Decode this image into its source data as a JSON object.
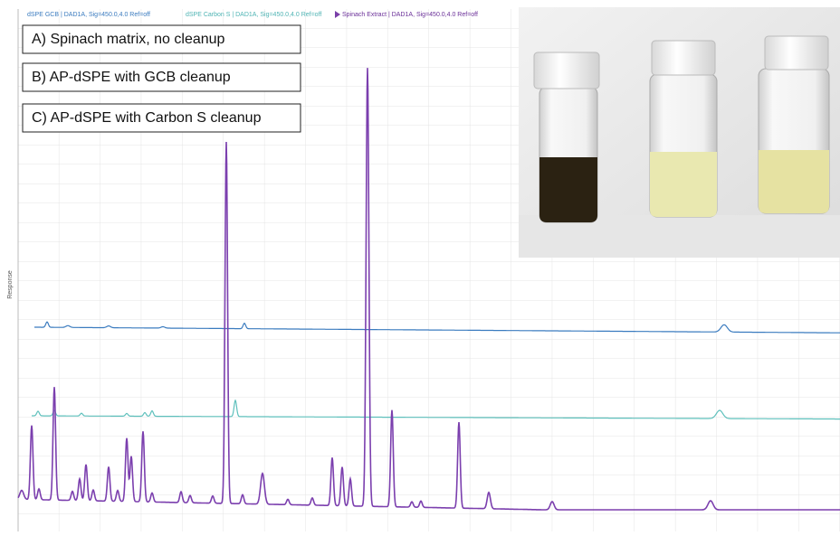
{
  "header_legend": [
    "dSPE GCB | DAD1A, Sig=450.0,4.0 Ref=off",
    "dSPE Carbon S | DAD1A, Sig=450.0,4.0 Ref=off",
    "Spinach Extract | DAD1A, Sig=450.0,4.0 Ref=off"
  ],
  "labels": [
    "A) Spinach matrix, no cleanup",
    "B) AP-dSPE with GCB cleanup",
    "C) AP-dSPE with Carbon S cleanup"
  ],
  "y_axis_label": "Response"
}
